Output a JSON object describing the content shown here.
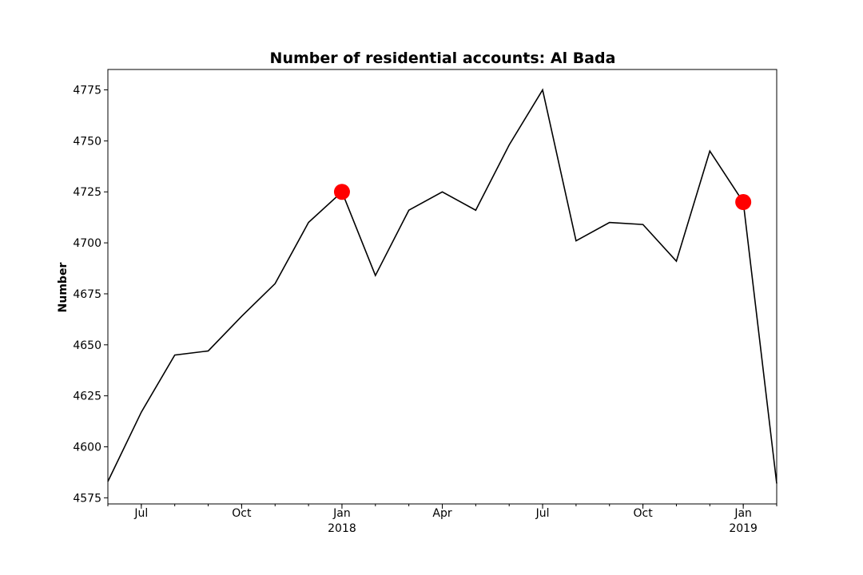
{
  "chart_data": {
    "type": "line",
    "title": "Number of residential accounts: Al Bada",
    "xlabel": "",
    "ylabel": "Number",
    "x": [
      "2017-06",
      "2017-07",
      "2017-08",
      "2017-09",
      "2017-10",
      "2017-11",
      "2017-12",
      "2018-01",
      "2018-02",
      "2018-03",
      "2018-04",
      "2018-05",
      "2018-06",
      "2018-07",
      "2018-08",
      "2018-09",
      "2018-10",
      "2018-11",
      "2018-12",
      "2019-01",
      "2019-02"
    ],
    "series": [
      {
        "values": [
          4583,
          4617,
          4645,
          4647,
          4664,
          4680,
          4710,
          4725,
          4684,
          4716,
          4725,
          4716,
          4748,
          4775,
          4701,
          4710,
          4709,
          4691,
          4745,
          4720,
          4582
        ],
        "color": "#000000"
      }
    ],
    "highlights": [
      {
        "x": "2018-01",
        "y": 4725,
        "color": "#ff0000"
      },
      {
        "x": "2019-01",
        "y": 4720,
        "color": "#ff0000"
      }
    ],
    "ylim": [
      4572,
      4785
    ],
    "yticks": [
      "4575",
      "4600",
      "4625",
      "4650",
      "4675",
      "4700",
      "4725",
      "4750",
      "4775"
    ],
    "xticks": [
      {
        "x": "2017-07",
        "label": "Jul"
      },
      {
        "x": "2017-10",
        "label": "Oct"
      },
      {
        "x": "2018-01",
        "label": "Jan",
        "label2": "2018"
      },
      {
        "x": "2018-04",
        "label": "Apr"
      },
      {
        "x": "2018-07",
        "label": "Jul"
      },
      {
        "x": "2018-10",
        "label": "Oct"
      },
      {
        "x": "2019-01",
        "label": "Jan",
        "label2": "2019"
      }
    ],
    "grid": false,
    "legend": "none"
  }
}
